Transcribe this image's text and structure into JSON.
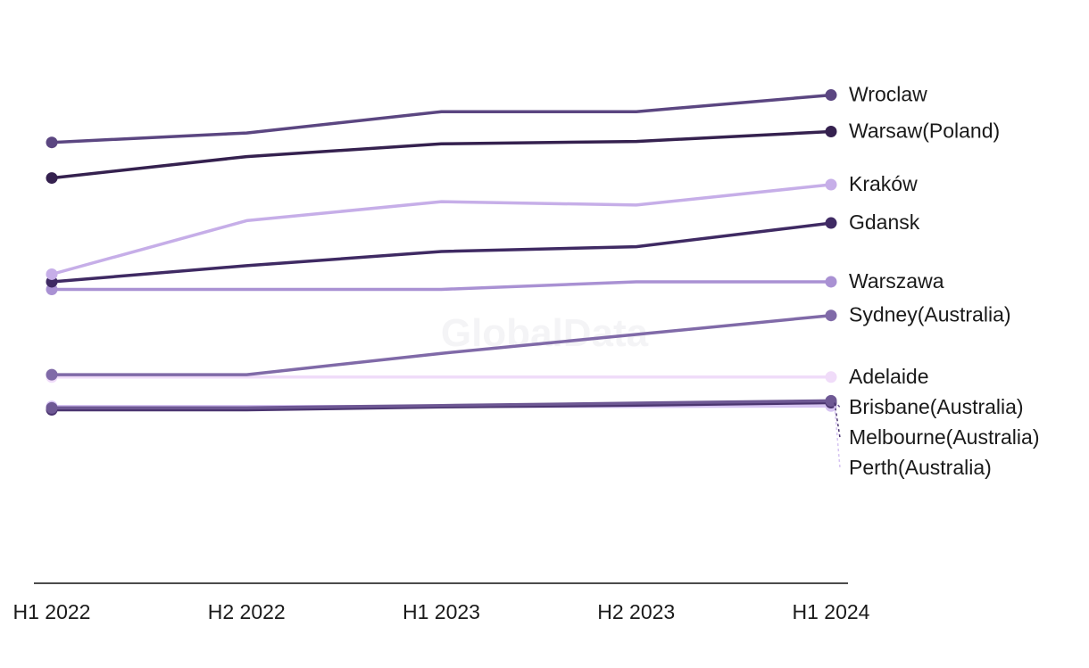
{
  "watermark": "GlobalData",
  "chart_data": {
    "type": "line",
    "categories": [
      "H1 2022",
      "H2 2022",
      "H1 2023",
      "H2 2023",
      "H1 2024"
    ],
    "ylim": [
      0,
      100
    ],
    "grid": false,
    "legend": "end-of-line labels (right)",
    "series": [
      {
        "name": "Wroclaw",
        "color": "#5b4681",
        "values": [
          93.0,
          95.0,
          99.5,
          99.5,
          103.0
        ]
      },
      {
        "name": "Warsaw(Poland)",
        "color": "#35214f",
        "values": [
          85.5,
          90.0,
          92.7,
          93.2,
          95.3
        ]
      },
      {
        "name": "Kraków",
        "color": "#c6aee8",
        "values": [
          65.2,
          76.5,
          80.5,
          79.8,
          84.1
        ]
      },
      {
        "name": "Gdansk",
        "color": "#3f2a63",
        "values": [
          63.6,
          67.0,
          70.0,
          71.0,
          76.0
        ]
      },
      {
        "name": "Warszawa",
        "color": "#a991d3",
        "values": [
          62.0,
          62.0,
          62.0,
          63.6,
          63.6
        ]
      },
      {
        "name": "Sydney(Australia)",
        "color": "#806aa8",
        "values": [
          44.0,
          44.0,
          48.5,
          52.5,
          56.5
        ]
      },
      {
        "name": "Adelaide",
        "color": "#f0dcf9",
        "values": [
          43.5,
          43.5,
          43.5,
          43.5,
          43.5
        ]
      },
      {
        "name": "Brisbane(Australia)",
        "color": "#6e5894",
        "values": [
          37.0,
          37.0,
          37.5,
          38.0,
          38.5
        ]
      },
      {
        "name": "Melbourne(Australia)",
        "color": "#4b3570",
        "values": [
          36.6,
          36.6,
          37.2,
          37.6,
          38.1
        ]
      },
      {
        "name": "Perth(Australia)",
        "color": "#d6c4f2",
        "values": [
          37.3,
          37.3,
          37.3,
          37.3,
          37.4
        ]
      }
    ]
  }
}
